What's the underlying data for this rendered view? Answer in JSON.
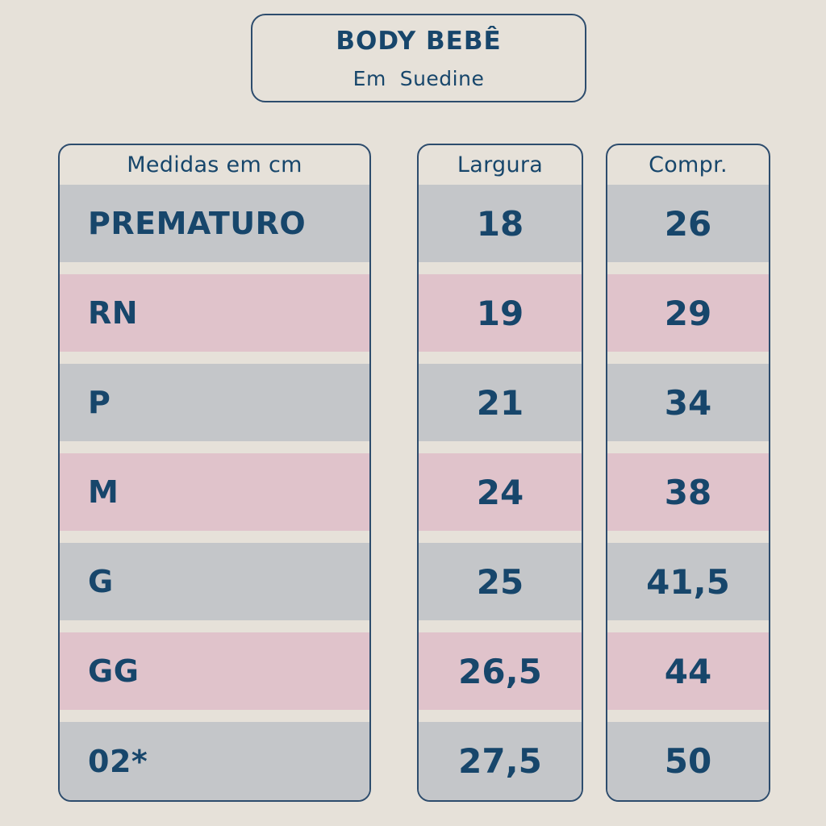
{
  "title": {
    "main": "BODY BEBÊ",
    "subtitle": "Em  Suedine"
  },
  "columns": {
    "sizes_header": "Medidas em cm",
    "width_header": "Largura",
    "length_header": "Compr."
  },
  "rows": [
    {
      "size": "PREMATURO",
      "largura": "18",
      "compr": "26"
    },
    {
      "size": "RN",
      "largura": "19",
      "compr": "29"
    },
    {
      "size": "P",
      "largura": "21",
      "compr": "34"
    },
    {
      "size": "M",
      "largura": "24",
      "compr": "38"
    },
    {
      "size": "G",
      "largura": "25",
      "compr": "41,5"
    },
    {
      "size": "GG",
      "largura": "26,5",
      "compr": "44"
    },
    {
      "size": "02*",
      "largura": "27,5",
      "compr": "50"
    }
  ],
  "colors": {
    "background": "#e6e1d9",
    "row_gray": "#c4c6c9",
    "row_pink": "#e0c3cb",
    "text_navy": "#17466b",
    "border_navy": "#2d4c6d"
  }
}
